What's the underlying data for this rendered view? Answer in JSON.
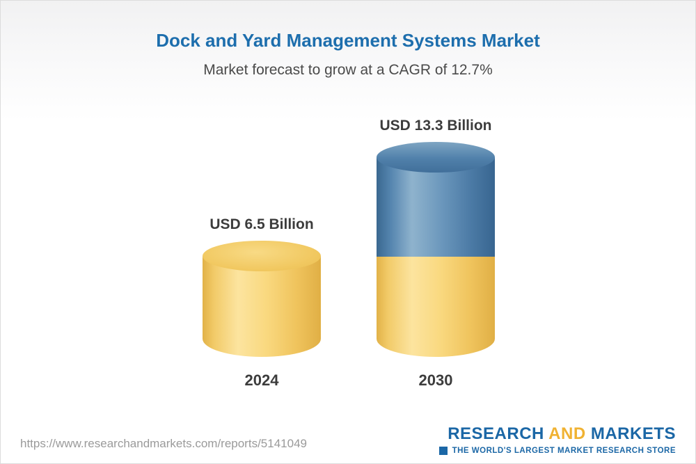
{
  "header": {
    "title": "Dock and Yard Management Systems Market",
    "subtitle": "Market forecast to grow at a CAGR of 12.7%"
  },
  "chart_data": {
    "type": "bar",
    "bar_style": "3d-cylinder",
    "title": "Dock and Yard Management Systems Market",
    "subtitle": "Market forecast to grow at a CAGR of 12.7%",
    "categories": [
      "2024",
      "2030"
    ],
    "values": [
      6.5,
      13.3
    ],
    "unit": "USD Billion",
    "value_labels": [
      "USD 6.5 Billion",
      "USD 13.3 Billion"
    ],
    "cagr_percent": 12.7,
    "legend": "none",
    "colors": {
      "base_segment": "#f6d06e",
      "growth_segment": "#5585af",
      "title": "#1d6ead",
      "labels": "#3c3c3c"
    }
  },
  "footer": {
    "url": "https://www.researchandmarkets.com/reports/5141049",
    "logo": {
      "research": "RESEARCH",
      "and": "AND",
      "markets": "MARKETS",
      "tagline": "THE WORLD'S LARGEST MARKET RESEARCH STORE"
    }
  }
}
